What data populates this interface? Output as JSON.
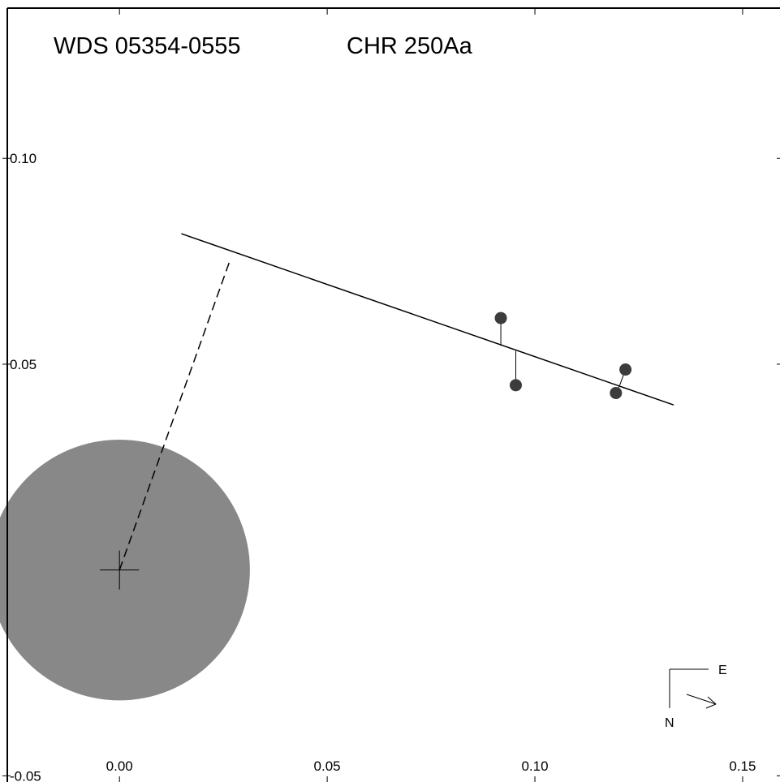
{
  "title_left": "WDS 05354-0555",
  "title_right": "CHR 250Aa",
  "compass": {
    "east_label": "E",
    "north_label": "N"
  },
  "colors": {
    "occulted_disk": "#888888",
    "points": "#3c3c3c",
    "lines": "#000000"
  },
  "chart_data": {
    "type": "scatter",
    "title": "WDS 05354-0555    CHR 250Aa",
    "xlim": [
      -0.027,
      0.159
    ],
    "ylim": [
      -0.0515,
      0.1365
    ],
    "x_ticks": [
      {
        "value": 0.0,
        "label": "0.00"
      },
      {
        "value": 0.05,
        "label": "0.05"
      },
      {
        "value": 0.1,
        "label": "0.10"
      },
      {
        "value": 0.15,
        "label": "0.15"
      }
    ],
    "y_ticks": [
      {
        "value": 0.1,
        "label": "0.10"
      },
      {
        "value": 0.05,
        "label": "0.05"
      },
      {
        "value": -0.05,
        "label": "-0.05"
      }
    ],
    "primary_star": {
      "x": 0.0,
      "y": 0.0
    },
    "occulted_region_radius": 0.0314,
    "orbit_segment": {
      "start": {
        "x": 0.0149,
        "y": 0.0817
      },
      "end": {
        "x": 0.1334,
        "y": 0.0401
      }
    },
    "periastron_line": {
      "start": {
        "x": 0.0,
        "y": 0.0
      },
      "end": {
        "x": 0.0267,
        "y": 0.0755
      }
    },
    "observations": [
      {
        "x": 0.0918,
        "y": 0.0612,
        "predicted": {
          "x": 0.0918,
          "y": 0.0545
        }
      },
      {
        "x": 0.0954,
        "y": 0.0449,
        "predicted": {
          "x": 0.0954,
          "y": 0.0532
        }
      },
      {
        "x": 0.1195,
        "y": 0.043,
        "predicted": {
          "x": 0.1205,
          "y": 0.0451
        }
      },
      {
        "x": 0.1218,
        "y": 0.0487,
        "predicted": {
          "x": 0.1205,
          "y": 0.0451
        }
      }
    ],
    "grid": false,
    "legend": "none"
  }
}
